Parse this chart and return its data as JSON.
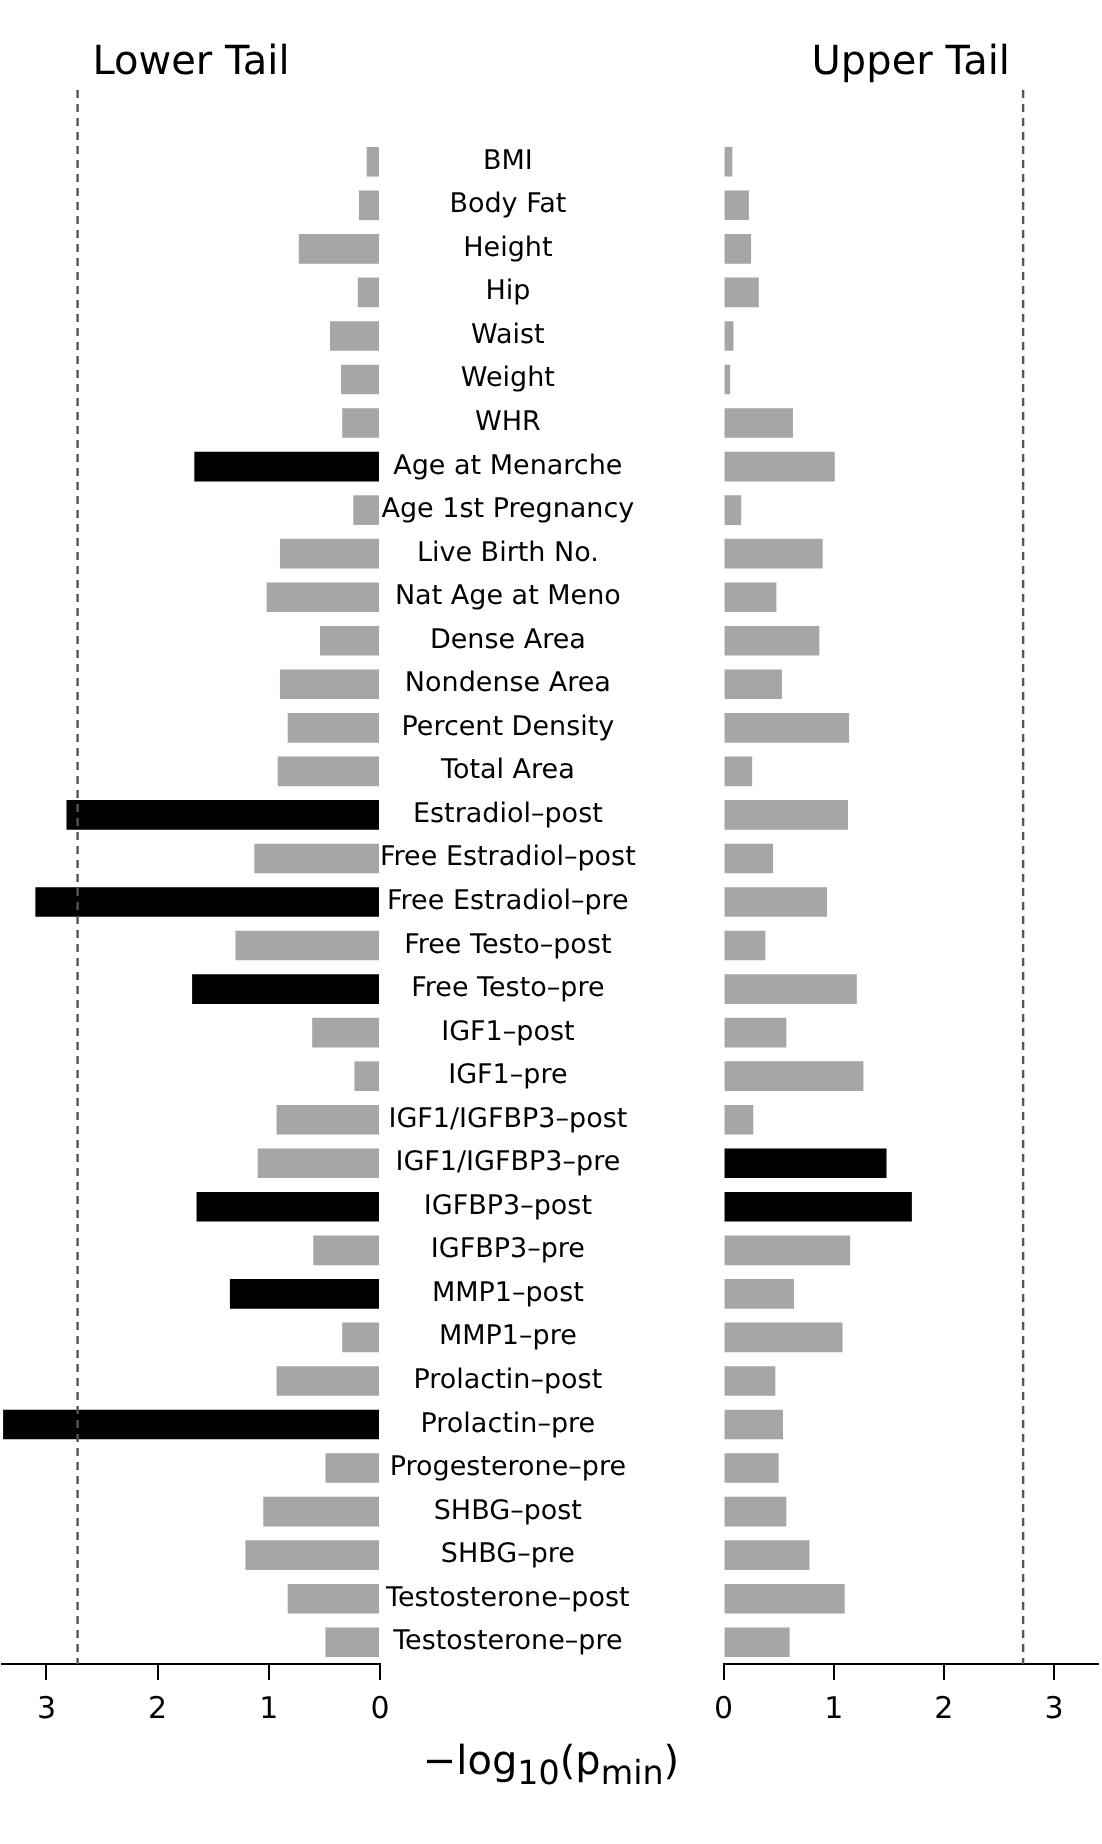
{
  "chart_data": [
    {
      "type": "bar",
      "orientation": "horizontal",
      "title": "Lower Tail",
      "xlabel": "−log$_{10}$(p$_{min}$)",
      "categories": [
        "BMI",
        "Body Fat",
        "Height",
        "Hip",
        "Waist",
        "Weight",
        "WHR",
        "Age at Menarche",
        "Age 1st Pregnancy",
        "Live Birth No.",
        "Nat Age at Meno",
        "Dense Area",
        "Nondense Area",
        "Percent Density",
        "Total Area",
        "Estradiol–post",
        "Free Estradiol–post",
        "Free Estradiol–pre",
        "Free Testo–post",
        "Free Testo–pre",
        "IGF1–post",
        "IGF1–pre",
        "IGF1/IGFBP3–post",
        "IGF1/IGFBP3–pre",
        "IGFBP3–post",
        "IGFBP3–pre",
        "MMP1–post",
        "MMP1–pre",
        "Prolactin–post",
        "Prolactin–pre",
        "Progesterone–pre",
        "SHBG–post",
        "SHBG–pre",
        "Testosterone–post",
        "Testosterone–pre"
      ],
      "values": [
        0.12,
        0.19,
        0.73,
        0.2,
        0.45,
        0.35,
        0.34,
        1.67,
        0.24,
        0.9,
        1.02,
        0.54,
        0.9,
        0.83,
        0.92,
        2.82,
        1.13,
        3.1,
        1.3,
        1.69,
        0.61,
        0.23,
        0.93,
        1.1,
        1.65,
        0.6,
        1.35,
        0.34,
        0.93,
        3.39,
        0.49,
        1.05,
        1.21,
        0.83,
        0.49
      ],
      "colors": [
        "#a6a6a6",
        "#a6a6a6",
        "#a6a6a6",
        "#a6a6a6",
        "#a6a6a6",
        "#a6a6a6",
        "#a6a6a6",
        "#000000",
        "#a6a6a6",
        "#a6a6a6",
        "#a6a6a6",
        "#a6a6a6",
        "#a6a6a6",
        "#a6a6a6",
        "#a6a6a6",
        "#000000",
        "#a6a6a6",
        "#000000",
        "#a6a6a6",
        "#000000",
        "#a6a6a6",
        "#a6a6a6",
        "#a6a6a6",
        "#a6a6a6",
        "#000000",
        "#a6a6a6",
        "#000000",
        "#a6a6a6",
        "#a6a6a6",
        "#000000",
        "#a6a6a6",
        "#a6a6a6",
        "#a6a6a6",
        "#a6a6a6",
        "#a6a6a6"
      ],
      "xlim": [
        3.4,
        0
      ],
      "xticks": [
        3,
        2,
        1,
        0
      ],
      "grid": false,
      "ref_lines": [
        {
          "axis": "x",
          "value": 2.72,
          "line_style": "dashed",
          "color": "#555555"
        }
      ]
    },
    {
      "type": "bar",
      "orientation": "horizontal",
      "title": "Upper Tail",
      "tick_labels": "x",
      "categories": [
        null,
        null,
        null,
        null,
        null,
        null,
        null,
        null,
        null,
        null,
        null,
        null,
        null,
        null,
        null,
        null,
        null,
        null,
        null,
        null,
        null,
        null,
        null,
        null,
        null,
        null,
        null,
        null,
        null,
        null,
        null,
        null,
        null,
        null,
        null
      ],
      "values": [
        0.08,
        0.23,
        0.25,
        0.32,
        0.09,
        0.06,
        0.63,
        1.01,
        0.16,
        0.9,
        0.48,
        0.87,
        0.53,
        1.14,
        0.26,
        1.13,
        0.45,
        0.94,
        0.38,
        1.21,
        0.57,
        1.27,
        0.27,
        1.48,
        1.71,
        1.15,
        0.64,
        1.08,
        0.47,
        0.54,
        0.5,
        0.57,
        0.78,
        1.1,
        0.6
      ],
      "colors": [
        "#a6a6a6",
        "#a6a6a6",
        "#a6a6a6",
        "#a6a6a6",
        "#a6a6a6",
        "#a6a6a6",
        "#a6a6a6",
        "#a6a6a6",
        "#a6a6a6",
        "#a6a6a6",
        "#a6a6a6",
        "#a6a6a6",
        "#a6a6a6",
        "#a6a6a6",
        "#a6a6a6",
        "#a6a6a6",
        "#a6a6a6",
        "#a6a6a6",
        "#a6a6a6",
        "#a6a6a6",
        "#a6a6a6",
        "#a6a6a6",
        "#a6a6a6",
        "#000000",
        "#000000",
        "#a6a6a6",
        "#a6a6a6",
        "#a6a6a6",
        "#a6a6a6",
        "#a6a6a6",
        "#a6a6a6",
        "#a6a6a6",
        "#a6a6a6",
        "#a6a6a6",
        "#a6a6a6"
      ],
      "xlim": [
        0,
        3.4
      ],
      "xticks": [
        0,
        1,
        2,
        3
      ],
      "grid": false,
      "ref_lines": [
        {
          "axis": "x",
          "value": 2.72,
          "line_style": "dashed",
          "color": "#555555"
        }
      ]
    }
  ]
}
